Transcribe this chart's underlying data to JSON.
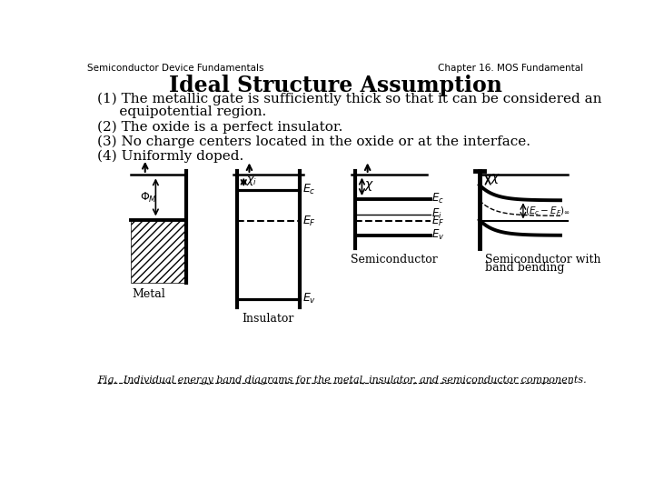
{
  "title_left": "Semiconductor Device Fundamentals",
  "title_right": "Chapter 16. MOS Fundamental",
  "main_title": "Ideal Structure Assumption",
  "line1": "(1) The metallic gate is sufficiently thick so that it can be considered an",
  "line2": "     equipotential region.",
  "line3": "(2) The oxide is a perfect insulator.",
  "line4": "(3) No charge centers located in the oxide or at the interface.",
  "line5": "(4) Uniformly doped.",
  "fig_caption": "Fig.  Individual energy band diagrams for the metal, insulator, and semiconductor components.",
  "lbl_metal": "Metal",
  "lbl_insulator": "Insulator",
  "lbl_semi": "Semiconductor",
  "lbl_bb1": "Semiconductor with",
  "lbl_bb2": "band bending",
  "background": "#ffffff"
}
